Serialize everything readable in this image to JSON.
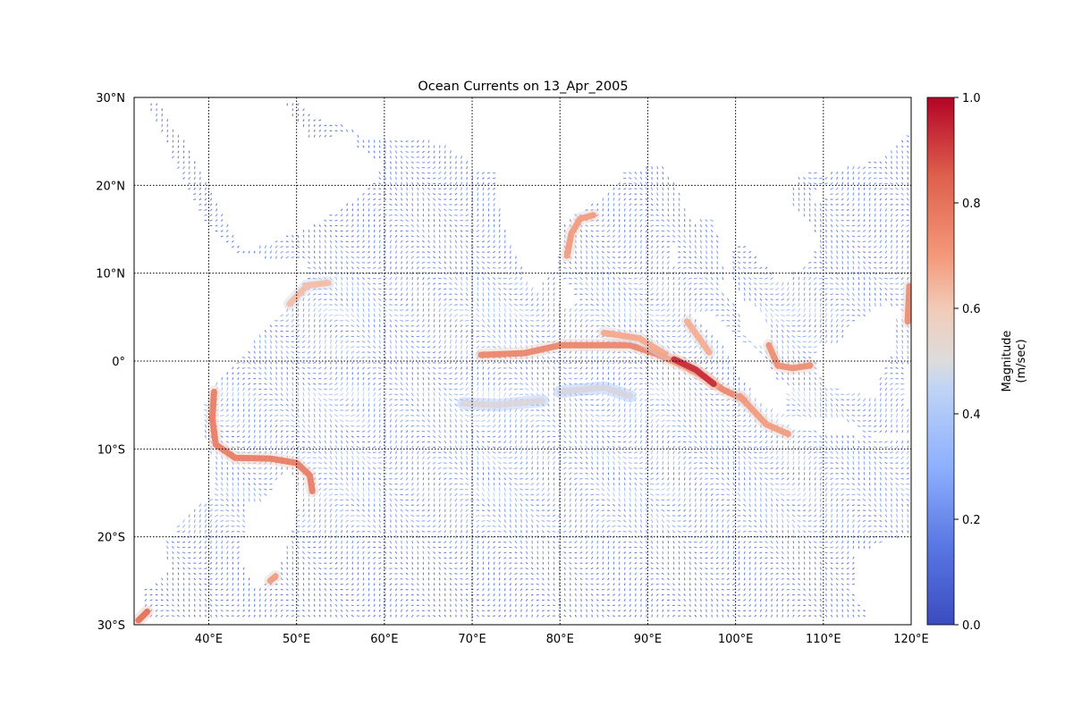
{
  "title": "Ocean Currents on 13_Apr_2005",
  "colorbar": {
    "label_line1": "Magnitude",
    "label_line2": "(m/sec)",
    "ticks": [
      "0.0",
      "0.2",
      "0.4",
      "0.6",
      "0.8",
      "1.0"
    ],
    "range": [
      0.0,
      1.0
    ],
    "colormap": "coolwarm",
    "colors": [
      "#3b4cc0",
      "#6688ee",
      "#9abbff",
      "#c9d7f0",
      "#edd1c2",
      "#f7a889",
      "#e26952",
      "#b40426"
    ]
  },
  "map": {
    "lon_range": [
      31.5,
      120
    ],
    "lat_range": [
      -30,
      30
    ],
    "grid": true,
    "lon_ticks": [
      {
        "value": 40,
        "label": "40°E"
      },
      {
        "value": 50,
        "label": "50°E"
      },
      {
        "value": 60,
        "label": "60°E"
      },
      {
        "value": 70,
        "label": "70°E"
      },
      {
        "value": 80,
        "label": "80°E"
      },
      {
        "value": 90,
        "label": "90°E"
      },
      {
        "value": 100,
        "label": "100°E"
      },
      {
        "value": 110,
        "label": "110°E"
      },
      {
        "value": 120,
        "label": "120°E"
      }
    ],
    "lat_ticks": [
      {
        "value": 30,
        "label": "30°N"
      },
      {
        "value": 20,
        "label": "20°N"
      },
      {
        "value": 10,
        "label": "10°N"
      },
      {
        "value": 0,
        "label": "0°"
      },
      {
        "value": -10,
        "label": "10°S"
      },
      {
        "value": -20,
        "label": "20°S"
      },
      {
        "value": -30,
        "label": "30°S"
      }
    ]
  },
  "chart_data": {
    "type": "heatmap",
    "title": "Ocean Currents on 13_Apr_2005",
    "xlabel": "",
    "ylabel": "",
    "xlim": [
      31.5,
      120
    ],
    "ylim": [
      -30,
      30
    ],
    "value_range": [
      0.0,
      1.0
    ],
    "strong_currents": [
      {
        "points": [
          [
            71,
            0.7
          ],
          [
            76,
            0.9
          ],
          [
            80,
            1.8
          ],
          [
            84,
            1.8
          ],
          [
            88,
            1.8
          ],
          [
            91,
            0.8
          ],
          [
            94,
            -0.5
          ],
          [
            96.5,
            -1.8
          ],
          [
            98.5,
            -3.2
          ],
          [
            101,
            -4.4
          ]
        ],
        "magnitude": 0.8
      },
      {
        "points": [
          [
            85,
            3.2
          ],
          [
            89,
            2.6
          ],
          [
            92,
            0.8
          ]
        ],
        "magnitude": 0.72
      },
      {
        "points": [
          [
            93,
            0.2
          ],
          [
            95.5,
            -1.0
          ],
          [
            97.5,
            -2.6
          ]
        ],
        "magnitude": 0.95
      },
      {
        "points": [
          [
            100.5,
            -4.0
          ],
          [
            102,
            -5.6
          ],
          [
            103.5,
            -7.2
          ],
          [
            106,
            -8.3
          ]
        ],
        "magnitude": 0.75
      },
      {
        "points": [
          [
            40.6,
            -3.5
          ],
          [
            40.4,
            -6.5
          ],
          [
            40.8,
            -9.5
          ],
          [
            43,
            -11
          ],
          [
            47,
            -11.1
          ],
          [
            50,
            -11.6
          ],
          [
            51.5,
            -13.0
          ],
          [
            51.8,
            -14.8
          ]
        ],
        "magnitude": 0.82
      },
      {
        "points": [
          [
            80.8,
            12.0
          ],
          [
            81.3,
            14.5
          ],
          [
            82.3,
            16.2
          ],
          [
            83.8,
            16.6
          ]
        ],
        "magnitude": 0.75
      },
      {
        "points": [
          [
            103.8,
            1.8
          ],
          [
            104.8,
            -0.5
          ],
          [
            106.5,
            -0.8
          ],
          [
            108.5,
            -0.5
          ]
        ],
        "magnitude": 0.78
      },
      {
        "points": [
          [
            49.2,
            6.5
          ],
          [
            51.2,
            8.6
          ],
          [
            53.6,
            8.9
          ]
        ],
        "magnitude": 0.65
      },
      {
        "points": [
          [
            94.5,
            4.5
          ],
          [
            97.0,
            1.0
          ]
        ],
        "magnitude": 0.7
      },
      {
        "points": [
          [
            69,
            -4.8
          ],
          [
            73,
            -5.0
          ],
          [
            78,
            -4.5
          ]
        ],
        "magnitude": 0.5
      },
      {
        "points": [
          [
            80,
            -3.5
          ],
          [
            85,
            -3.0
          ],
          [
            88,
            -4.0
          ]
        ],
        "magnitude": 0.48
      },
      {
        "points": [
          [
            32,
            -29.5
          ],
          [
            33,
            -28.5
          ]
        ],
        "magnitude": 0.85
      },
      {
        "points": [
          [
            47,
            -25
          ],
          [
            47.6,
            -24.5
          ]
        ],
        "magnitude": 0.75
      },
      {
        "points": [
          [
            119.6,
            4.5
          ],
          [
            119.8,
            8.5
          ]
        ],
        "magnitude": 0.78
      }
    ]
  }
}
